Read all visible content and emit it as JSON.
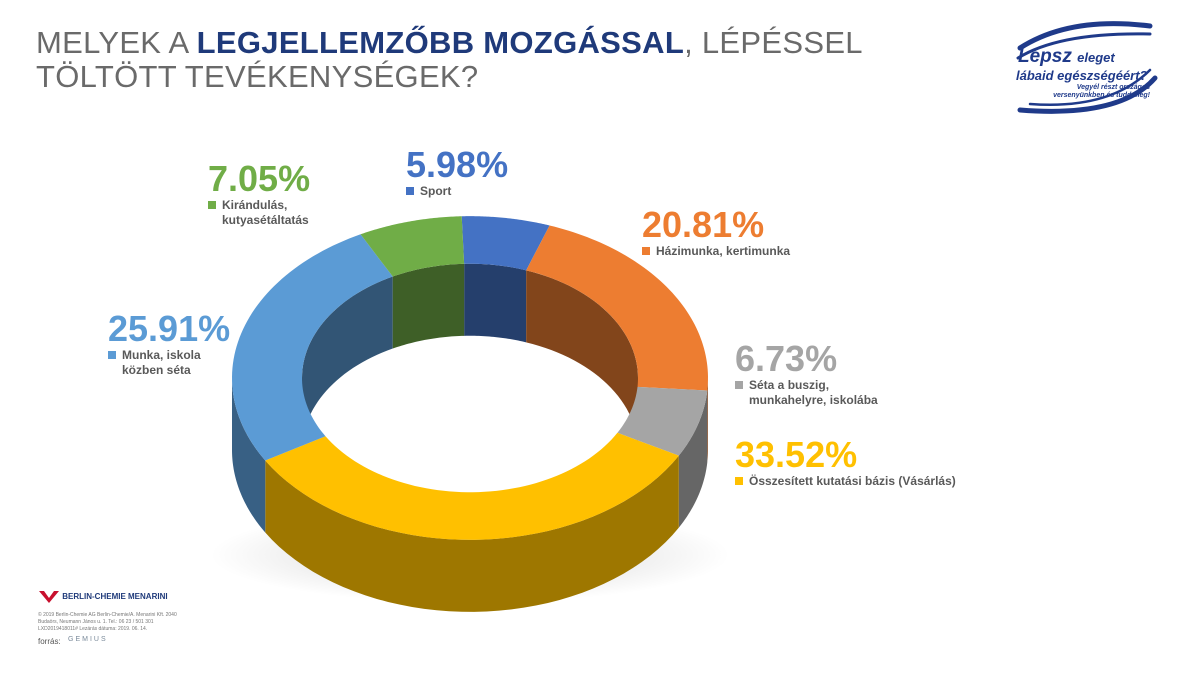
{
  "title": {
    "part1": "MELYEK A ",
    "bold": "LEGJELLEMZŐBB MOZGÁSSAL",
    "part2": ", LÉPÉSSEL TÖLTÖTT TEVÉKENYSÉGEK?"
  },
  "logo": {
    "line1a": "Lépsz",
    "line1b": "eleget",
    "line2": "lábaid egészségéért?",
    "line3": "Vegyél részt országos versenyünkben és tudd meg!"
  },
  "footer": {
    "company": "BERLIN-CHEMIE MENARINI",
    "copyright": "© 2019 Berlin-Chemie AG Berlin-Chemie/A. Menarini Kft. 2040 Budaörs, Neumann János u. 1. Tel.: 06 23 / 501 301 LXD2019418011# Lezárás dátuma: 2019. 06. 14.",
    "source_label": "forrás:",
    "source_name": "GEMIUS"
  },
  "colors": {
    "sport": "#4472C4",
    "hazimunka": "#ED7D31",
    "seta_busz": "#A5A5A5",
    "osszesitett": "#FFC000",
    "munka": "#5B9BD5",
    "kirandulas": "#70AD47"
  },
  "chart_data": {
    "type": "pie",
    "variant": "3d-doughnut",
    "categories": [
      "Sport",
      "Házimunka, kertimunka",
      "Séta a buszig, munkahelyre, iskolába",
      "Összesített kutatási bázis (Vásárlás)",
      "Munka, iskola közben séta",
      "Kirándulás, kutyasétáltatás"
    ],
    "values": [
      5.98,
      20.81,
      6.73,
      33.52,
      25.91,
      7.05
    ],
    "value_labels": [
      "5.98%",
      "20.81%",
      "6.73%",
      "33.52%",
      "25.91%",
      "7.05%"
    ],
    "colors": [
      "#4472C4",
      "#ED7D31",
      "#A5A5A5",
      "#FFC000",
      "#5B9BD5",
      "#70AD47"
    ],
    "legend_placement": "around"
  }
}
